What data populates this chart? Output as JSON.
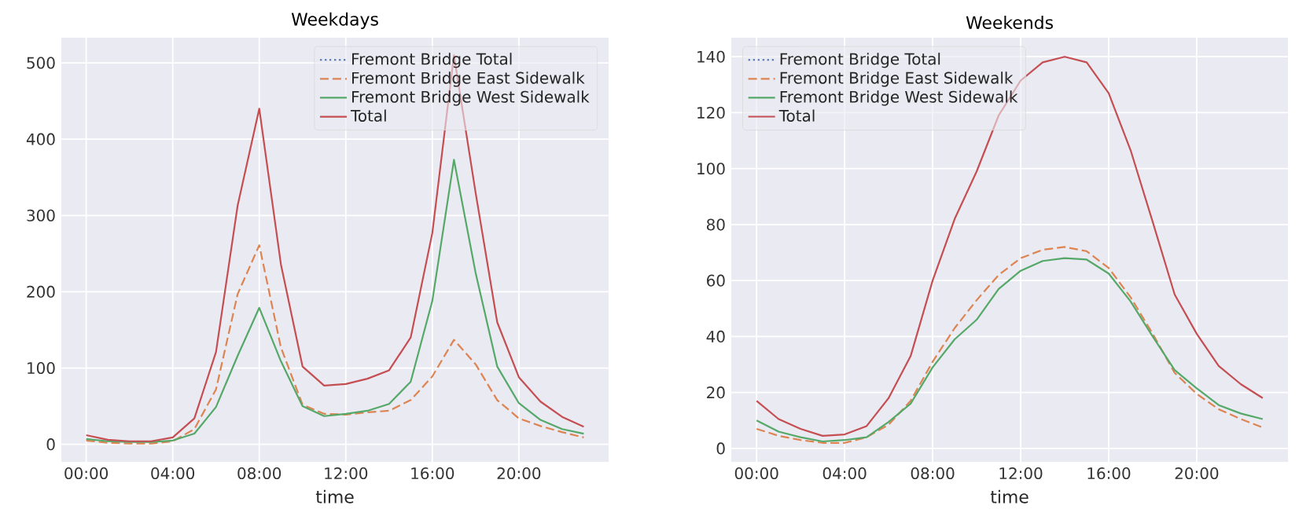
{
  "chart_data": [
    {
      "type": "line",
      "title": "Weekdays",
      "xlabel": "time",
      "x": [
        0,
        1,
        2,
        3,
        4,
        5,
        6,
        7,
        8,
        9,
        10,
        11,
        12,
        13,
        14,
        15,
        16,
        17,
        18,
        19,
        20,
        21,
        22,
        23
      ],
      "xlim": [
        -1.15,
        24.15
      ],
      "ylim": [
        -23,
        533
      ],
      "xticks": [
        {
          "value": 0,
          "label": "00:00"
        },
        {
          "value": 4,
          "label": "04:00"
        },
        {
          "value": 8,
          "label": "08:00"
        },
        {
          "value": 12,
          "label": "12:00"
        },
        {
          "value": 16,
          "label": "16:00"
        },
        {
          "value": 20,
          "label": "20:00"
        }
      ],
      "yticks": [
        0,
        100,
        200,
        300,
        400,
        500
      ],
      "grid": true,
      "legend": "top right",
      "marker": "none",
      "series": [
        {
          "name": "Fremont Bridge Total",
          "color": "#4c72b0",
          "line_style": "dotted",
          "values": [
            null,
            null,
            null,
            null,
            null,
            null,
            null,
            null,
            null,
            null,
            null,
            null,
            null,
            null,
            null,
            null,
            null,
            null,
            null,
            null,
            null,
            null,
            null,
            null
          ]
        },
        {
          "name": "Fremont Bridge East Sidewalk",
          "color": "#dd8452",
          "line_style": "dashed",
          "values": [
            5,
            2,
            1,
            1,
            4,
            20,
            72,
            197,
            261,
            127,
            52,
            40,
            39,
            42,
            44,
            58,
            89,
            137,
            105,
            58,
            34,
            24,
            16,
            9
          ]
        },
        {
          "name": "Fremont Bridge West Sidewalk",
          "color": "#55a868",
          "line_style": "solid",
          "values": [
            7,
            4,
            3,
            3,
            5,
            14,
            49,
            116,
            179,
            109,
            50,
            37,
            40,
            44,
            53,
            82,
            188,
            373,
            225,
            102,
            54,
            32,
            20,
            14
          ]
        },
        {
          "name": "Total",
          "color": "#c44e52",
          "line_style": "solid",
          "values": [
            12,
            6,
            4,
            4,
            9,
            34,
            121,
            313,
            440,
            236,
            102,
            77,
            79,
            86,
            97,
            140,
            277,
            510,
            330,
            160,
            88,
            56,
            36,
            23
          ]
        }
      ]
    },
    {
      "type": "line",
      "title": "Weekends",
      "xlabel": "time",
      "x": [
        0,
        1,
        2,
        3,
        4,
        5,
        6,
        7,
        8,
        9,
        10,
        11,
        12,
        13,
        14,
        15,
        16,
        17,
        18,
        19,
        20,
        21,
        22,
        23
      ],
      "xlim": [
        -1.15,
        24.15
      ],
      "ylim": [
        -4.8,
        146.8
      ],
      "xticks": [
        {
          "value": 0,
          "label": "00:00"
        },
        {
          "value": 4,
          "label": "04:00"
        },
        {
          "value": 8,
          "label": "08:00"
        },
        {
          "value": 12,
          "label": "12:00"
        },
        {
          "value": 16,
          "label": "16:00"
        },
        {
          "value": 20,
          "label": "20:00"
        }
      ],
      "yticks": [
        0,
        20,
        40,
        60,
        80,
        100,
        120,
        140
      ],
      "grid": true,
      "legend": "top left",
      "marker": "none",
      "series": [
        {
          "name": "Fremont Bridge Total",
          "color": "#4c72b0",
          "line_style": "dotted",
          "values": [
            null,
            null,
            null,
            null,
            null,
            null,
            null,
            null,
            null,
            null,
            null,
            null,
            null,
            null,
            null,
            null,
            null,
            null,
            null,
            null,
            null,
            null,
            null,
            null
          ]
        },
        {
          "name": "Fremont Bridge East Sidewalk",
          "color": "#dd8452",
          "line_style": "dashed",
          "values": [
            7,
            4.5,
            3,
            2,
            2,
            4,
            8.5,
            17,
            31,
            43,
            53,
            62,
            68,
            71,
            72,
            70.5,
            64.5,
            54,
            41,
            27,
            19.5,
            14,
            10.5,
            7.5
          ]
        },
        {
          "name": "Fremont Bridge West Sidewalk",
          "color": "#55a868",
          "line_style": "solid",
          "values": [
            10,
            6,
            4,
            2.5,
            3,
            4,
            9.5,
            16,
            29,
            39,
            46,
            57,
            63.5,
            67,
            68,
            67.5,
            62.5,
            52.5,
            40,
            28,
            21.5,
            15.5,
            12.5,
            10.5
          ]
        },
        {
          "name": "Total",
          "color": "#c44e52",
          "line_style": "solid",
          "values": [
            17,
            10.5,
            7,
            4.5,
            5,
            8,
            18,
            33,
            60,
            82,
            99,
            119,
            131.5,
            138,
            140,
            138,
            127,
            106.5,
            81,
            55,
            41,
            29.5,
            23,
            18
          ]
        }
      ]
    }
  ]
}
